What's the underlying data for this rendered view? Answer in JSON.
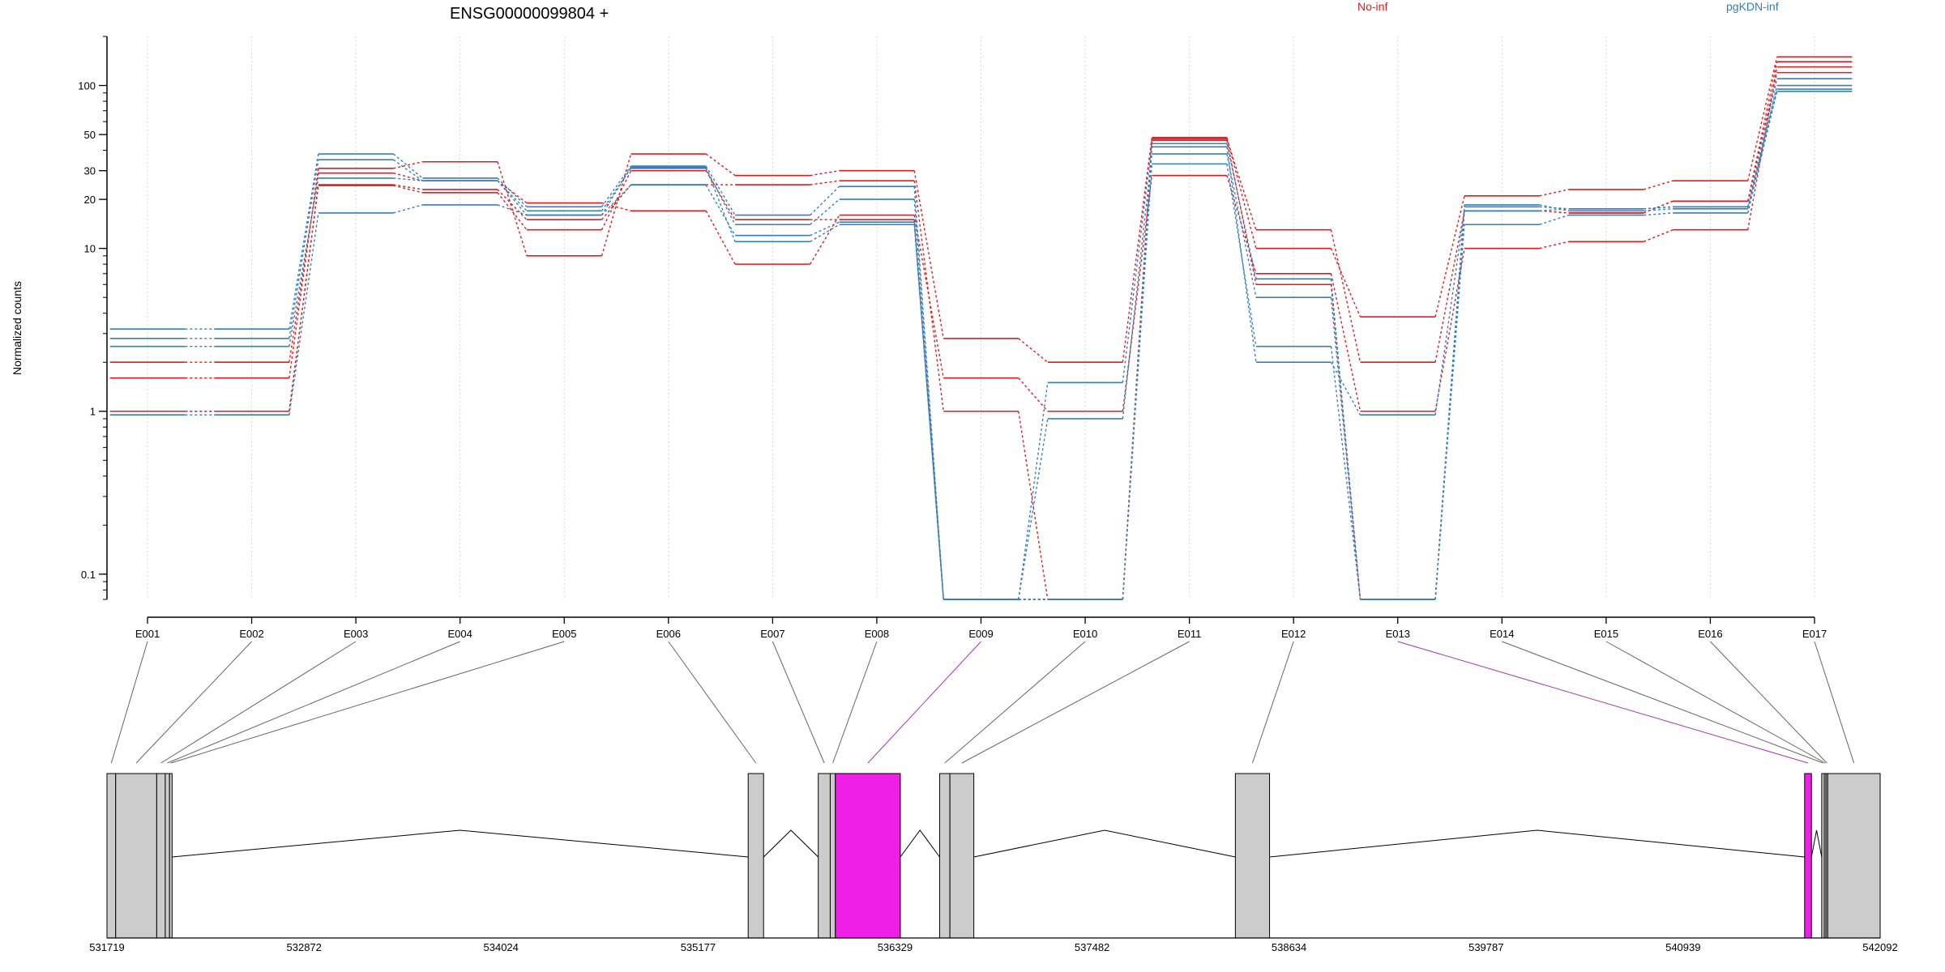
{
  "chart_data": {
    "type": "line",
    "title": "ENSG00000099804 +",
    "ylabel": "Normalized counts",
    "y_scale": "log",
    "ylim": [
      0.07,
      200
    ],
    "y_ticks": [
      0.1,
      1,
      10,
      20,
      30,
      50,
      100
    ],
    "y_tick_labels": [
      "0.1",
      "1",
      "10",
      "20",
      "30",
      "50",
      "100"
    ],
    "grid": "vertical dotted at exon positions",
    "legend": [
      {
        "name": "No-inf",
        "color": "#E41A1C",
        "placement": "top-right"
      },
      {
        "name": "pgKDN-inf",
        "color": "#377EB8",
        "placement": "top-right"
      }
    ],
    "categories": [
      "E001",
      "E002",
      "E003",
      "E004",
      "E005",
      "E006",
      "E007",
      "E008",
      "E009",
      "E010",
      "E011",
      "E012",
      "E013",
      "E014",
      "E015",
      "E016",
      "E017"
    ],
    "highlighted_exons": [
      "E009",
      "E013"
    ],
    "series": [
      {
        "name": "No-inf",
        "color": "#E41A1C",
        "values": [
          1.0,
          1.0,
          24.6,
          23.0,
          15.0,
          24.6,
          24.6,
          26.0,
          1.0,
          0.07,
          47.0,
          13.0,
          2.0,
          17.0,
          16.5,
          19.5,
          140
        ]
      },
      {
        "name": "No-inf",
        "color": "#E41A1C",
        "values": [
          1.6,
          1.6,
          31.0,
          34.0,
          9.0,
          38.0,
          28.0,
          30.0,
          2.8,
          2.0,
          48.0,
          10.0,
          3.8,
          21.0,
          23.0,
          26.0,
          150
        ]
      },
      {
        "name": "No-inf",
        "color": "#E41A1C",
        "values": [
          2.0,
          2.0,
          29.0,
          26.0,
          19.0,
          17.0,
          8.0,
          16.0,
          1.6,
          1.0,
          28.0,
          7.0,
          1.0,
          10.0,
          11.0,
          13.0,
          130
        ]
      },
      {
        "name": "No-inf",
        "color": "#E41A1C",
        "values": [
          1.0,
          1.0,
          24.3,
          22.0,
          13.0,
          30.0,
          15.0,
          15.0,
          0.07,
          0.07,
          46.0,
          6.0,
          0.07,
          17.0,
          16.5,
          19.5,
          120
        ]
      },
      {
        "name": "pgKDN-inf",
        "color": "#377EB8",
        "values": [
          3.2,
          3.2,
          38.0,
          27.0,
          18.0,
          32.0,
          16.0,
          24.0,
          0.07,
          1.5,
          44.0,
          6.5,
          0.07,
          18.0,
          17.5,
          18.0,
          110
        ]
      },
      {
        "name": "pgKDN-inf",
        "color": "#377EB8",
        "values": [
          2.8,
          2.8,
          35.0,
          26.0,
          17.0,
          31.0,
          14.0,
          20.0,
          0.07,
          0.9,
          38.0,
          5.0,
          0.07,
          18.5,
          17.0,
          17.5,
          100
        ]
      },
      {
        "name": "pgKDN-inf",
        "color": "#377EB8",
        "values": [
          2.5,
          2.5,
          27.0,
          26.0,
          16.0,
          24.5,
          12.0,
          14.5,
          0.07,
          0.07,
          33.0,
          2.5,
          0.07,
          14.0,
          16.0,
          16.5,
          92
        ]
      },
      {
        "name": "pgKDN-inf",
        "color": "#377EB8",
        "values": [
          0.95,
          0.95,
          16.5,
          18.5,
          16.0,
          31.5,
          11.0,
          14.0,
          0.07,
          0.07,
          42.0,
          2.0,
          0.95,
          17.0,
          17.5,
          18.0,
          95
        ]
      }
    ],
    "gene_model": {
      "coordinate_ticks": [
        "531719",
        "532872",
        "534024",
        "535177",
        "536329",
        "537482",
        "538634",
        "539787",
        "540939",
        "542092"
      ],
      "coordinate_range": [
        531719,
        542092
      ],
      "exons": [
        {
          "id": "E001",
          "start": 531719,
          "end": 531770,
          "highlight": false
        },
        {
          "id": "E002",
          "start": 531770,
          "end": 532010,
          "highlight": false
        },
        {
          "id": "E003",
          "start": 532010,
          "end": 532060,
          "highlight": false
        },
        {
          "id": "E004",
          "start": 532060,
          "end": 532085,
          "highlight": false
        },
        {
          "id": "E005",
          "start": 532085,
          "end": 532100,
          "highlight": false
        },
        {
          "id": "E006",
          "start": 535470,
          "end": 535560,
          "highlight": false
        },
        {
          "id": "E007",
          "start": 535880,
          "end": 535950,
          "highlight": false
        },
        {
          "id": "E008",
          "start": 535950,
          "end": 535980,
          "highlight": false
        },
        {
          "id": "E009",
          "start": 535980,
          "end": 536360,
          "highlight": true
        },
        {
          "id": "E010",
          "start": 536590,
          "end": 536650,
          "highlight": false
        },
        {
          "id": "E011",
          "start": 536650,
          "end": 536790,
          "highlight": false
        },
        {
          "id": "E012",
          "start": 538320,
          "end": 538520,
          "highlight": false
        },
        {
          "id": "E013",
          "start": 541650,
          "end": 541690,
          "highlight": true
        },
        {
          "id": "E014",
          "start": 541750,
          "end": 541765,
          "highlight": false
        },
        {
          "id": "E015",
          "start": 541765,
          "end": 541775,
          "highlight": false
        },
        {
          "id": "E016",
          "start": 541775,
          "end": 541785,
          "highlight": false
        },
        {
          "id": "E017",
          "start": 541785,
          "end": 542092,
          "highlight": false
        }
      ],
      "introns": [
        [
          532100,
          535470
        ],
        [
          535560,
          535880
        ],
        [
          536360,
          536590
        ],
        [
          536790,
          538320
        ],
        [
          538520,
          541650
        ],
        [
          541690,
          541750
        ]
      ]
    }
  }
}
